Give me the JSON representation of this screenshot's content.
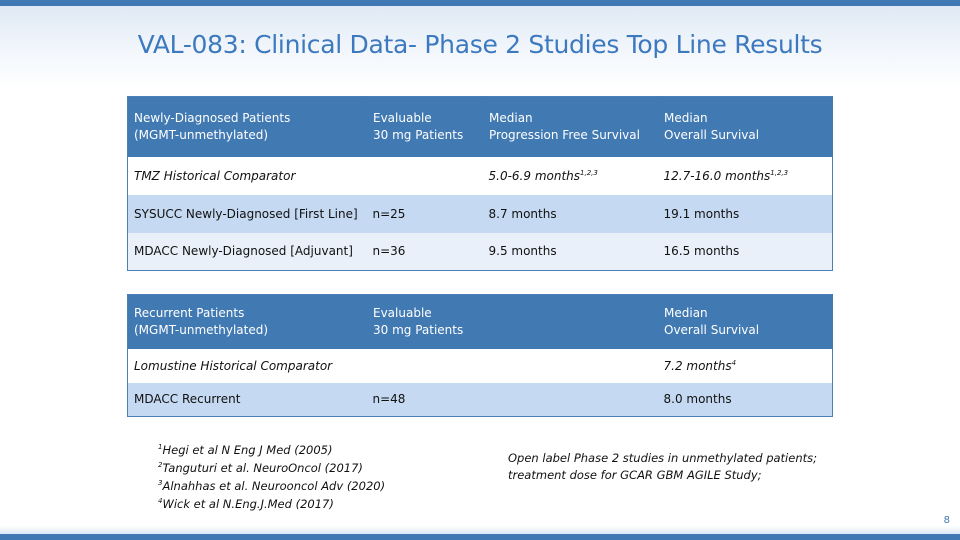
{
  "slide": {
    "title": "VAL-083: Clinical Data- Phase 2 Studies Top Line Results",
    "page_number": "8"
  },
  "newly_diagnosed_table": {
    "headers": [
      {
        "line1": "Newly-Diagnosed Patients",
        "line2": "(MGMT-unmethylated)"
      },
      {
        "line1": "Evaluable",
        "line2": "30 mg Patients"
      },
      {
        "line1": "Median",
        "line2": "Progression Free Survival"
      },
      {
        "line1": "Median",
        "line2": "Overall Survival"
      }
    ],
    "rows": [
      {
        "study": "TMZ Historical Comparator",
        "evaluable": "",
        "pfs": "5.0-6.9 months",
        "pfs_sup": "1,2,3",
        "os": "12.7-16.0 months",
        "os_sup": "1,2,3"
      },
      {
        "study": "SYSUCC Newly-Diagnosed [First Line]",
        "evaluable": "n=25",
        "pfs": "8.7 months",
        "os": "19.1 months"
      },
      {
        "study": "MDACC Newly-Diagnosed [Adjuvant]",
        "evaluable": "n=36",
        "pfs": "9.5 months",
        "os": "16.5 months"
      }
    ]
  },
  "recurrent_table": {
    "headers": [
      {
        "line1": "Recurrent Patients",
        "line2": "(MGMT-unmethylated)"
      },
      {
        "line1": "Evaluable",
        "line2": "30 mg Patients"
      },
      {
        "line1": "",
        "line2": ""
      },
      {
        "line1": "Median",
        "line2": "Overall Survival"
      }
    ],
    "rows": [
      {
        "study": "Lomustine Historical Comparator",
        "evaluable": "",
        "os": "7.2 months",
        "os_sup": "4"
      },
      {
        "study": "MDACC Recurrent",
        "evaluable": "n=48",
        "os": "8.0 months"
      }
    ]
  },
  "references": [
    {
      "num": "1",
      "text": "Hegi et al N Eng J Med (2005)"
    },
    {
      "num": "2",
      "text": "Tanguturi et al. NeuroOncol (2017)"
    },
    {
      "num": "3",
      "text": "Alnahhas et al. Neurooncol Adv (2020)"
    },
    {
      "num": "4",
      "text": "Wick et al N.Eng.J.Med  (2017)"
    }
  ],
  "note": {
    "line1": "Open label Phase 2 studies in unmethylated patients;",
    "line2": "treatment dose for GCAR GBM AGILE Study;"
  },
  "colors": {
    "title": "#3c79bf",
    "header_fill": "#4179b3",
    "row_blue": "#c5daf2",
    "row_pale": "#e9f0f9",
    "bar": "#3f78b3"
  }
}
